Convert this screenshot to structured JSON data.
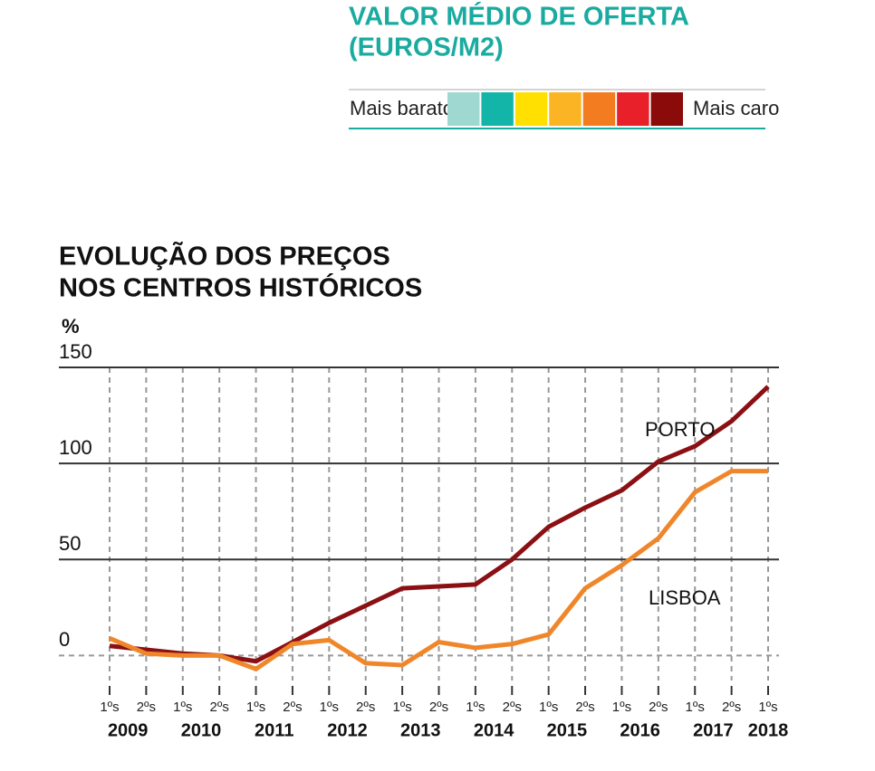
{
  "legend": {
    "title": [
      "VALOR MÉDIO DE OFERTA",
      "(EUROS/M2)"
    ],
    "low_label": "Mais barato",
    "high_label": "Mais caro",
    "colors": [
      "#9fd8d1",
      "#14b5a9",
      "#ffe000",
      "#fbb424",
      "#f47c20",
      "#e8202a",
      "#8b0a0a"
    ]
  },
  "chart_data": {
    "type": "line",
    "title": [
      "EVOLUÇÃO DOS PREÇOS",
      "NOS CENTROS HISTÓRICOS"
    ],
    "y_label": "%",
    "categories": [
      "1ºs",
      "2ºs",
      "1ºs",
      "2ºs",
      "1ºs",
      "2ºs",
      "1ºs",
      "2ºs",
      "1ºs",
      "2ºs",
      "1ºs",
      "2ºs",
      "1ºs",
      "2ºs",
      "1ºs",
      "2ºs",
      "1ºs",
      "2ºs",
      "1ºs"
    ],
    "years": [
      "2009",
      "2010",
      "2011",
      "2012",
      "2013",
      "2014",
      "2015",
      "2016",
      "2017",
      "2018"
    ],
    "series": [
      {
        "name": "PORTO",
        "color": "#8b1014",
        "values": [
          5,
          3,
          1,
          0,
          -3,
          7,
          17,
          26,
          35,
          36,
          37,
          50,
          67,
          77,
          86,
          101,
          109,
          122,
          140
        ]
      },
      {
        "name": "LISBOA",
        "color": "#f0862a",
        "values": [
          9,
          1,
          0,
          0,
          -7,
          6,
          8,
          -4,
          -5,
          7,
          4,
          6,
          11,
          35,
          47,
          61,
          85,
          96,
          96
        ]
      }
    ],
    "ylim": [
      -13,
      150
    ],
    "yticks": [
      0,
      50,
      100,
      150
    ],
    "grid": true
  }
}
